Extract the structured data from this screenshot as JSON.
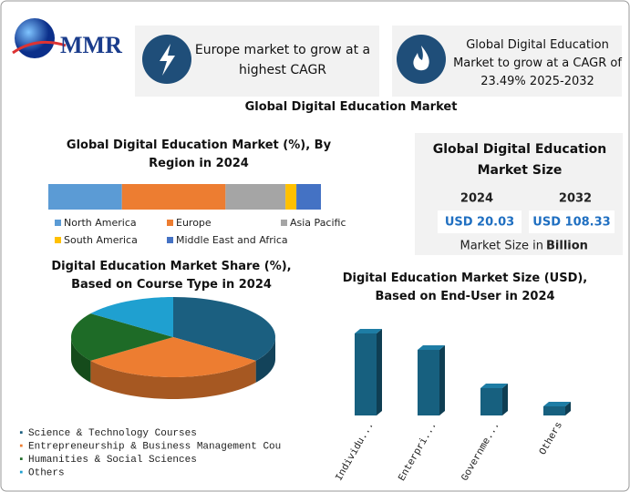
{
  "header": {
    "logo": "MMR"
  },
  "cards": [
    {
      "text": "Europe market to grow at a highest CAGR"
    },
    {
      "text": "Global Digital Education Market to grow at a CAGR of 23.49% 2025-2032"
    }
  ],
  "title": "Global Digital Education Market",
  "market_size": {
    "title": "Global Digital Education Market Size",
    "years": [
      "2024",
      "2032"
    ],
    "values": [
      "USD 20.03",
      "USD 108.33"
    ],
    "unit_label": "Market Size in",
    "unit": "Billion"
  },
  "chart_data": [
    {
      "type": "stacked_bar",
      "title": "Global Digital Education Market (%), By Region in 2024",
      "series": [
        {
          "name": "North America",
          "color": "#5b9bd5",
          "values": [
            27
          ]
        },
        {
          "name": "Europe",
          "color": "#ed7d31",
          "values": [
            38
          ]
        },
        {
          "name": "Asia Pacific",
          "color": "#a5a5a5",
          "values": [
            22
          ]
        },
        {
          "name": "South America",
          "color": "#ffc000",
          "values": [
            4
          ]
        },
        {
          "name": "Middle East and Africa",
          "color": "#4472c4",
          "values": [
            9
          ]
        }
      ]
    },
    {
      "type": "pie",
      "title": "Digital Education Market Share (%), Based on Course Type in 2024",
      "categories": [
        "Science & Technology Courses",
        "Entrepreneurship & Business Management Cou",
        "Humanities & Social Sciences",
        "Others"
      ],
      "values": [
        35,
        30,
        20,
        15
      ],
      "colors": [
        "#1b5f80",
        "#ed7d31",
        "#1e6b27",
        "#1fa0d0"
      ]
    },
    {
      "type": "bar",
      "title": "Digital Education Market Size (USD), Based on End-User in 2024",
      "categories": [
        "Individu...",
        "Enterpri...",
        "Governme...",
        "Others"
      ],
      "values": [
        90,
        72,
        30,
        10
      ],
      "color": "#17607f"
    }
  ]
}
